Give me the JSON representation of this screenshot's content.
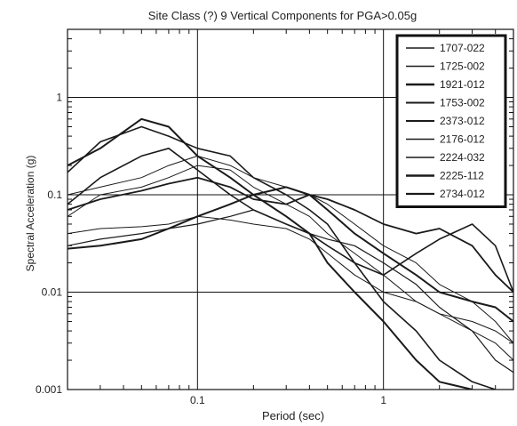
{
  "chart_data": {
    "type": "line",
    "title": "Site Class (?) 9 Vertical Components for PGA>0.05g",
    "xlabel": "Period (sec)",
    "ylabel": "Spectral Acceleration (g)",
    "x_scale": "log",
    "y_scale": "log",
    "xlim": [
      0.02,
      5
    ],
    "ylim": [
      0.001,
      5
    ],
    "x_ticks": [
      {
        "value": 0.1,
        "label": "0.1"
      },
      {
        "value": 1,
        "label": "1"
      }
    ],
    "y_ticks": [
      {
        "value": 0.001,
        "label": "0.001"
      },
      {
        "value": 0.01,
        "label": "0.01"
      },
      {
        "value": 0.1,
        "label": "0.1"
      },
      {
        "value": 1,
        "label": "1"
      }
    ],
    "grid": "major decades only",
    "legend_position": "top-right",
    "line_color": "#1a1a1a",
    "series": [
      {
        "name": "1707-022",
        "x": [
          0.02,
          0.03,
          0.05,
          0.07,
          0.1,
          0.15,
          0.2,
          0.3,
          0.4,
          0.5,
          0.7,
          1,
          1.5,
          2,
          3,
          4,
          5
        ],
        "y": [
          0.04,
          0.045,
          0.047,
          0.05,
          0.06,
          0.055,
          0.05,
          0.045,
          0.035,
          0.025,
          0.015,
          0.01,
          0.008,
          0.006,
          0.005,
          0.004,
          0.003
        ]
      },
      {
        "name": "1725-002",
        "x": [
          0.02,
          0.03,
          0.05,
          0.07,
          0.1,
          0.15,
          0.2,
          0.3,
          0.4,
          0.5,
          0.7,
          1,
          1.5,
          2,
          3,
          4,
          5
        ],
        "y": [
          0.03,
          0.035,
          0.04,
          0.045,
          0.05,
          0.06,
          0.07,
          0.05,
          0.04,
          0.035,
          0.03,
          0.02,
          0.012,
          0.007,
          0.004,
          0.002,
          0.0015
        ]
      },
      {
        "name": "1921-012",
        "x": [
          0.02,
          0.03,
          0.05,
          0.07,
          0.1,
          0.15,
          0.2,
          0.3,
          0.4,
          0.5,
          0.7,
          1,
          1.5,
          2,
          3,
          4,
          5
        ],
        "y": [
          0.028,
          0.03,
          0.035,
          0.045,
          0.06,
          0.08,
          0.1,
          0.12,
          0.1,
          0.07,
          0.04,
          0.025,
          0.015,
          0.01,
          0.008,
          0.007,
          0.005
        ]
      },
      {
        "name": "1753-002",
        "x": [
          0.02,
          0.03,
          0.05,
          0.07,
          0.1,
          0.15,
          0.2,
          0.3,
          0.4,
          0.5,
          0.7,
          1,
          1.5,
          2,
          3,
          4
        ],
        "y": [
          0.17,
          0.35,
          0.5,
          0.4,
          0.3,
          0.25,
          0.15,
          0.1,
          0.07,
          0.05,
          0.02,
          0.008,
          0.004,
          0.002,
          0.0012,
          0.001
        ]
      },
      {
        "name": "2373-012",
        "x": [
          0.02,
          0.03,
          0.05,
          0.07,
          0.1,
          0.15,
          0.2,
          0.3,
          0.4,
          0.5,
          0.7,
          1,
          1.5,
          2,
          3,
          4,
          5
        ],
        "y": [
          0.08,
          0.15,
          0.25,
          0.3,
          0.18,
          0.1,
          0.07,
          0.05,
          0.04,
          0.03,
          0.02,
          0.015,
          0.025,
          0.035,
          0.05,
          0.03,
          0.01
        ]
      },
      {
        "name": "2176-012",
        "x": [
          0.02,
          0.03,
          0.05,
          0.07,
          0.1,
          0.15,
          0.2,
          0.3,
          0.4,
          0.5,
          0.7,
          1,
          1.5,
          2,
          3,
          4,
          5
        ],
        "y": [
          0.06,
          0.1,
          0.12,
          0.15,
          0.2,
          0.18,
          0.12,
          0.08,
          0.06,
          0.04,
          0.025,
          0.015,
          0.008,
          0.006,
          0.004,
          0.003,
          0.002
        ]
      },
      {
        "name": "2224-032",
        "x": [
          0.02,
          0.03,
          0.05,
          0.07,
          0.1,
          0.15,
          0.2,
          0.3,
          0.4,
          0.5,
          0.7,
          1,
          1.5,
          2,
          3,
          4,
          5
        ],
        "y": [
          0.1,
          0.12,
          0.15,
          0.2,
          0.25,
          0.2,
          0.15,
          0.12,
          0.1,
          0.08,
          0.05,
          0.03,
          0.02,
          0.012,
          0.008,
          0.005,
          0.003
        ]
      },
      {
        "name": "2225-112",
        "x": [
          0.02,
          0.03,
          0.05,
          0.07,
          0.1,
          0.15,
          0.2,
          0.3,
          0.4,
          0.5,
          0.7,
          1,
          1.5,
          2,
          3
        ],
        "y": [
          0.2,
          0.3,
          0.6,
          0.5,
          0.25,
          0.15,
          0.1,
          0.06,
          0.04,
          0.02,
          0.01,
          0.005,
          0.002,
          0.0012,
          0.001
        ]
      },
      {
        "name": "2734-012",
        "x": [
          0.02,
          0.03,
          0.05,
          0.07,
          0.1,
          0.15,
          0.2,
          0.3,
          0.4,
          0.5,
          0.7,
          1,
          1.5,
          2,
          3,
          4,
          5
        ],
        "y": [
          0.07,
          0.09,
          0.11,
          0.13,
          0.15,
          0.12,
          0.09,
          0.08,
          0.1,
          0.09,
          0.07,
          0.05,
          0.04,
          0.045,
          0.03,
          0.015,
          0.01
        ]
      }
    ]
  }
}
